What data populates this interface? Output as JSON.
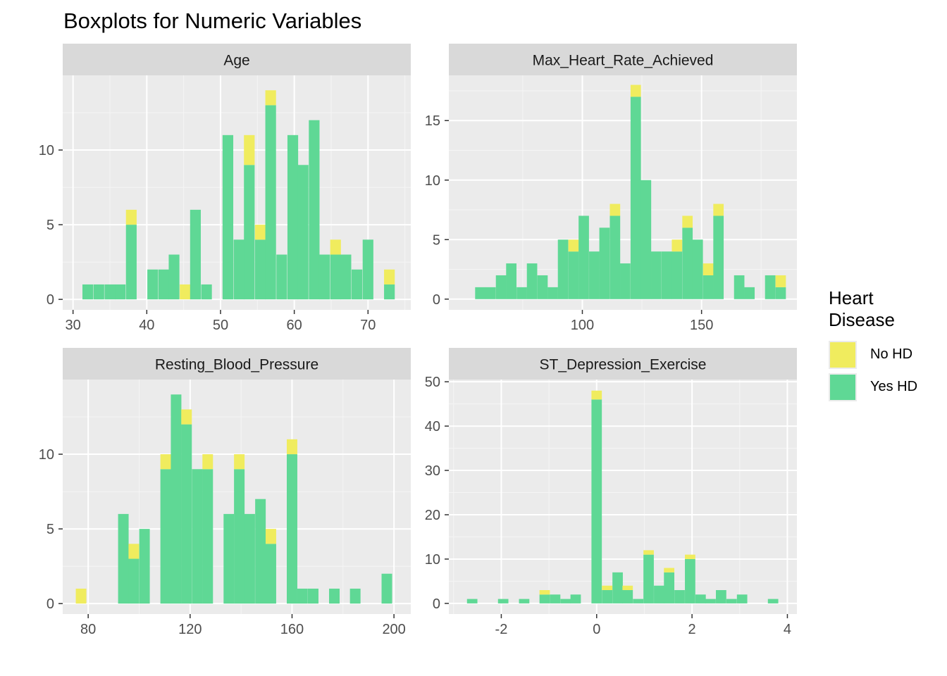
{
  "title": "Boxplots for Numeric Variables",
  "legend": {
    "title": "Heart\nDisease",
    "entries": [
      {
        "label": "No HD",
        "color": "#f0ec5e"
      },
      {
        "label": "Yes HD",
        "color": "#5fd895"
      }
    ]
  },
  "colors": {
    "no_hd": "#f0ec5e",
    "yes_hd": "#5fd895",
    "panel_bg": "#ebebeb",
    "strip_bg": "#d9d9d9",
    "grid_major": "#ffffff",
    "axis_text": "#4d4d4d"
  },
  "chart_data": [
    {
      "type": "bar",
      "facet": "Age",
      "position": "stacked",
      "xlim": [
        28.6,
        75.8
      ],
      "ylim": [
        -0.7,
        15
      ],
      "x_ticks": [
        30,
        40,
        50,
        60,
        70
      ],
      "y_ticks": [
        0,
        5,
        10
      ],
      "bin_width": 1.45,
      "x": [
        32.0,
        33.5,
        35.0,
        36.4,
        37.9,
        40.8,
        42.3,
        43.7,
        45.2,
        46.6,
        48.1,
        51.0,
        52.5,
        53.9,
        55.4,
        56.8,
        58.3,
        59.8,
        61.2,
        62.7,
        64.1,
        65.6,
        67.0,
        68.5,
        70.0,
        71.4,
        72.9
      ],
      "series": [
        {
          "name": "Yes HD",
          "values": [
            1,
            1,
            1,
            1,
            5,
            2,
            2,
            3,
            0,
            6,
            1,
            11,
            4,
            9,
            4,
            13,
            3,
            11,
            9,
            12,
            3,
            3,
            3,
            2,
            4,
            0,
            1
          ]
        },
        {
          "name": "No HD",
          "values": [
            0,
            0,
            0,
            0,
            1,
            0,
            0,
            0,
            1,
            0,
            0,
            0,
            0,
            2,
            1,
            1,
            0,
            0,
            0,
            0,
            0,
            1,
            0,
            0,
            0,
            0,
            1
          ]
        }
      ]
    },
    {
      "type": "bar",
      "facet": "Max_Heart_Rate_Achieved",
      "position": "stacked",
      "xlim": [
        44,
        190
      ],
      "ylim": [
        -0.9,
        18.8
      ],
      "x_ticks": [
        100,
        150
      ],
      "y_ticks": [
        0,
        5,
        10,
        15
      ],
      "bin_width": 4.35,
      "x": [
        57.2,
        61.5,
        65.9,
        70.2,
        74.6,
        78.9,
        83.3,
        87.6,
        91.9,
        96.3,
        100.6,
        105.0,
        109.3,
        113.7,
        118.0,
        122.4,
        126.7,
        131.0,
        135.4,
        139.7,
        144.1,
        148.4,
        152.8,
        157.1,
        161.5,
        165.8,
        170.1,
        174.5,
        178.8,
        183.2
      ],
      "series": [
        {
          "name": "Yes HD",
          "values": [
            1,
            1,
            2,
            3,
            1,
            3,
            2,
            1,
            5,
            4,
            7,
            4,
            6,
            7,
            3,
            17,
            10,
            4,
            4,
            4,
            6,
            5,
            2,
            7,
            0,
            2,
            1,
            0,
            2,
            1
          ]
        },
        {
          "name": "No HD",
          "values": [
            0,
            0,
            0,
            0,
            0,
            0,
            0,
            0,
            0,
            1,
            0,
            0,
            0,
            1,
            0,
            1,
            0,
            0,
            0,
            1,
            1,
            0,
            1,
            1,
            0,
            0,
            0,
            0,
            0,
            1
          ]
        }
      ]
    },
    {
      "type": "bar",
      "facet": "Resting_Blood_Pressure",
      "position": "stacked",
      "xlim": [
        70.0,
        206.6
      ],
      "ylim": [
        -0.7,
        15
      ],
      "x_ticks": [
        80,
        120,
        160,
        200
      ],
      "y_ticks": [
        0,
        5,
        10
      ],
      "bin_width": 4.14,
      "x": [
        77.2,
        81.4,
        85.5,
        89.7,
        93.8,
        97.9,
        102.1,
        106.2,
        110.4,
        114.5,
        118.6,
        122.8,
        126.9,
        131.0,
        135.2,
        139.3,
        143.4,
        147.6,
        151.7,
        155.9,
        160.0,
        164.1,
        168.3,
        172.4,
        176.6,
        180.7,
        184.8,
        189.0,
        193.1,
        197.2
      ],
      "series": [
        {
          "name": "Yes HD",
          "values": [
            0,
            0,
            0,
            0,
            6,
            3,
            5,
            0,
            9,
            14,
            12,
            9,
            9,
            0,
            6,
            9,
            6,
            7,
            4,
            0,
            10,
            1,
            1,
            0,
            1,
            0,
            1,
            0,
            0,
            2
          ]
        },
        {
          "name": "No HD",
          "values": [
            1,
            0,
            0,
            0,
            0,
            1,
            0,
            0,
            1,
            0,
            1,
            0,
            1,
            0,
            0,
            1,
            0,
            0,
            1,
            0,
            1,
            0,
            0,
            0,
            0,
            0,
            0,
            0,
            0,
            0
          ]
        }
      ]
    },
    {
      "type": "bar",
      "facet": "ST_Depression_Exercise",
      "position": "stacked",
      "xlim": [
        -3.1,
        4.2
      ],
      "ylim": [
        -2.4,
        50.5
      ],
      "x_ticks": [
        -2,
        0,
        2,
        4
      ],
      "y_ticks": [
        0,
        10,
        20,
        30,
        40,
        50
      ],
      "bin_width": 0.218,
      "x": [
        -2.61,
        -2.39,
        -2.18,
        -1.96,
        -1.74,
        -1.52,
        -1.31,
        -1.09,
        -0.87,
        -0.65,
        -0.44,
        -0.22,
        0.0,
        0.22,
        0.44,
        0.65,
        0.87,
        1.09,
        1.31,
        1.52,
        1.74,
        1.96,
        2.18,
        2.39,
        2.61,
        2.83,
        3.05,
        3.27,
        3.48,
        3.7
      ],
      "series": [
        {
          "name": "Yes HD",
          "values": [
            1,
            0,
            0,
            1,
            0,
            1,
            0,
            2,
            2,
            1,
            2,
            0,
            46,
            3,
            7,
            3,
            1,
            11,
            4,
            7,
            3,
            10,
            2,
            1,
            3,
            1,
            2,
            0,
            0,
            1
          ]
        },
        {
          "name": "No HD",
          "values": [
            0,
            0,
            0,
            0,
            0,
            0,
            0,
            1,
            0,
            0,
            0,
            0,
            2,
            1,
            0,
            1,
            0,
            1,
            0,
            1,
            0,
            1,
            0,
            0,
            0,
            0,
            0,
            0,
            0,
            0
          ]
        }
      ]
    }
  ]
}
